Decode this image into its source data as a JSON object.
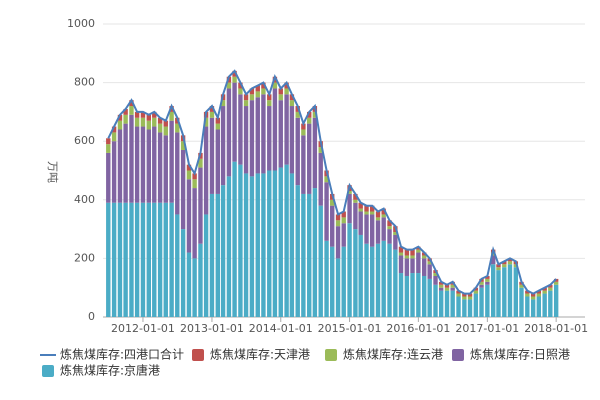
{
  "chart_data": {
    "type": "bar",
    "y_label": "万吨",
    "x": [
      "2011-07-01",
      "2011-08-01",
      "2011-09-01",
      "2011-10-01",
      "2011-11-01",
      "2011-12-01",
      "2012-01-01",
      "2012-02-01",
      "2012-03-01",
      "2012-04-01",
      "2012-05-01",
      "2012-06-01",
      "2012-07-01",
      "2012-08-01",
      "2012-09-01",
      "2012-10-01",
      "2012-11-01",
      "2012-12-01",
      "2013-01-01",
      "2013-02-01",
      "2013-03-01",
      "2013-04-01",
      "2013-05-01",
      "2013-06-01",
      "2013-07-01",
      "2013-08-01",
      "2013-09-01",
      "2013-10-01",
      "2013-11-01",
      "2013-12-01",
      "2014-01-01",
      "2014-02-01",
      "2014-03-01",
      "2014-04-01",
      "2014-05-01",
      "2014-06-01",
      "2014-07-01",
      "2014-08-01",
      "2014-09-01",
      "2014-10-01",
      "2014-11-01",
      "2014-12-01",
      "2015-01-01",
      "2015-02-01",
      "2015-03-01",
      "2015-04-01",
      "2015-05-01",
      "2015-06-01",
      "2015-07-01",
      "2015-08-01",
      "2015-09-01",
      "2015-10-01",
      "2015-11-01",
      "2015-12-01",
      "2016-01-01",
      "2016-02-01",
      "2016-03-01",
      "2016-04-01",
      "2016-05-01",
      "2016-06-01",
      "2016-07-01",
      "2016-08-01",
      "2016-09-01",
      "2016-10-01",
      "2016-11-01",
      "2016-12-01",
      "2017-01-01",
      "2017-02-01",
      "2017-03-01",
      "2017-04-01",
      "2017-05-01",
      "2017-06-01",
      "2017-07-01",
      "2017-08-01",
      "2017-09-01",
      "2017-10-01",
      "2017-11-01",
      "2017-12-01",
      "2018-01-01"
    ],
    "series": [
      {
        "name": "炼焦煤库存:四港口合计",
        "type": "line",
        "color": "#4a7ebb",
        "values": [
          610,
          650,
          690,
          710,
          740,
          700,
          700,
          690,
          700,
          680,
          670,
          720,
          680,
          620,
          520,
          490,
          560,
          700,
          720,
          680,
          760,
          820,
          840,
          800,
          760,
          780,
          790,
          800,
          760,
          820,
          780,
          800,
          760,
          720,
          660,
          700,
          720,
          600,
          500,
          420,
          350,
          360,
          450,
          420,
          390,
          380,
          380,
          360,
          370,
          330,
          310,
          240,
          230,
          230,
          240,
          220,
          200,
          160,
          120,
          110,
          120,
          90,
          80,
          80,
          100,
          130,
          140,
          230,
          180,
          190,
          200,
          190,
          120,
          90,
          80,
          90,
          100,
          110,
          130
        ]
      },
      {
        "name": "炼焦煤库存:天津港",
        "color": "#c0504d",
        "values": [
          20,
          20,
          20,
          20,
          20,
          20,
          20,
          20,
          20,
          20,
          20,
          20,
          20,
          20,
          20,
          20,
          20,
          20,
          20,
          20,
          20,
          20,
          20,
          20,
          20,
          20,
          20,
          20,
          20,
          20,
          20,
          20,
          20,
          20,
          20,
          20,
          20,
          20,
          20,
          20,
          20,
          20,
          20,
          20,
          20,
          20,
          20,
          20,
          20,
          20,
          20,
          20,
          20,
          20,
          10,
          10,
          10,
          10,
          10,
          10,
          10,
          10,
          10,
          10,
          10,
          10,
          10,
          10,
          10,
          10,
          10,
          10,
          10,
          10,
          10,
          10,
          10,
          10,
          10
        ]
      },
      {
        "name": "炼焦煤库存:连云港",
        "color": "#9bbb59",
        "values": [
          30,
          30,
          30,
          30,
          30,
          30,
          30,
          30,
          30,
          30,
          30,
          30,
          30,
          30,
          30,
          30,
          30,
          30,
          20,
          20,
          20,
          20,
          20,
          20,
          20,
          20,
          20,
          20,
          20,
          20,
          20,
          20,
          20,
          20,
          20,
          20,
          20,
          20,
          20,
          20,
          20,
          20,
          10,
          10,
          10,
          10,
          10,
          10,
          10,
          10,
          10,
          10,
          10,
          10,
          10,
          10,
          10,
          10,
          10,
          10,
          10,
          10,
          10,
          10,
          10,
          10,
          10,
          10,
          10,
          10,
          10,
          10,
          10,
          10,
          10,
          10,
          10,
          10,
          10
        ]
      },
      {
        "name": "炼焦煤库存:日照港",
        "color": "#8064a2",
        "values": [
          170,
          210,
          250,
          270,
          300,
          260,
          260,
          250,
          260,
          240,
          230,
          280,
          280,
          270,
          250,
          240,
          260,
          300,
          260,
          220,
          270,
          300,
          270,
          240,
          230,
          260,
          260,
          270,
          220,
          280,
          230,
          240,
          230,
          230,
          200,
          240,
          240,
          180,
          200,
          140,
          110,
          80,
          100,
          90,
          80,
          100,
          110,
          80,
          80,
          50,
          50,
          60,
          60,
          50,
          70,
          60,
          50,
          30,
          10,
          0,
          10,
          0,
          0,
          0,
          0,
          10,
          10,
          30,
          0,
          0,
          0,
          0,
          0,
          0,
          0,
          0,
          0,
          0,
          0
        ]
      },
      {
        "name": "炼焦煤库存:京唐港",
        "color": "#4bacc6",
        "values": [
          390,
          390,
          390,
          390,
          390,
          390,
          390,
          390,
          390,
          390,
          390,
          390,
          350,
          300,
          220,
          200,
          250,
          350,
          420,
          420,
          450,
          480,
          530,
          520,
          490,
          480,
          490,
          490,
          500,
          500,
          510,
          520,
          490,
          450,
          420,
          420,
          440,
          380,
          260,
          240,
          200,
          240,
          320,
          300,
          280,
          250,
          240,
          250,
          260,
          250,
          230,
          150,
          140,
          150,
          150,
          140,
          130,
          110,
          90,
          90,
          90,
          70,
          60,
          60,
          80,
          100,
          110,
          180,
          160,
          170,
          180,
          170,
          100,
          70,
          60,
          70,
          80,
          90,
          110
        ]
      }
    ],
    "xlim": [
      "2011-06-03",
      "2018-06-03"
    ],
    "xticks": [
      "2012-01-01",
      "2013-01-01",
      "2014-01-01",
      "2015-01-01",
      "2016-01-01",
      "2017-01-01",
      "2018-01-01"
    ],
    "ylim": [
      0,
      1000
    ],
    "yticks": [
      0,
      200,
      400,
      600,
      800,
      1000
    ],
    "grid": true
  }
}
